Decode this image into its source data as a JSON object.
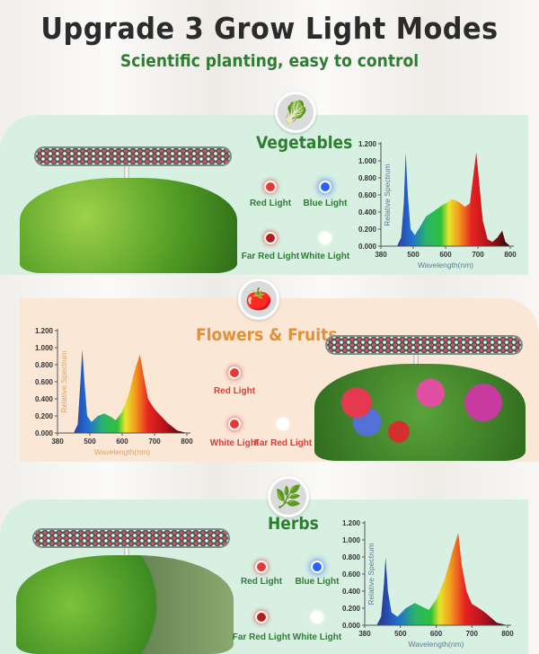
{
  "header": {
    "title": "Upgrade 3 Grow Light Modes",
    "subtitle": "Scientific planting, easy to control"
  },
  "sections": [
    {
      "title": "Vegetables",
      "icon": "lettuce-icon",
      "lights": [
        "Red Light",
        "Blue Light",
        "Far Red Light",
        "White Light"
      ]
    },
    {
      "title": "Flowers & Fruits",
      "icon": "tomato-flower-icon",
      "lights": [
        "Red Light",
        "White Light",
        "Far Red Light"
      ]
    },
    {
      "title": "Herbs",
      "icon": "basil-leaf-icon",
      "lights": [
        "Red Light",
        "Blue Light",
        "Far Red Light",
        "White Light"
      ]
    }
  ],
  "colors": {
    "green_text": "#2e7d32",
    "orange_text": "#e0913a",
    "red_light": "#e53935",
    "blue_light": "#2962ff",
    "mint": "#d7f0e2",
    "peach": "#fbe7d6"
  },
  "chart_data": [
    {
      "type": "area",
      "ylabel": "Relative Spectrum",
      "xlabel": "Wavelength(nm)",
      "xticks": [
        "380",
        "500",
        "600",
        "700",
        "800"
      ],
      "yticks": [
        "0.000",
        "0.200",
        "0.400",
        "0.600",
        "0.800",
        "1.000",
        "1.200"
      ],
      "ylim": [
        0,
        1.2
      ],
      "grid": false,
      "x": [
        380,
        440,
        455,
        465,
        472,
        480,
        490,
        505,
        520,
        540,
        560,
        590,
        620,
        640,
        660,
        675,
        685,
        695,
        705,
        715,
        730,
        745,
        760,
        775,
        785,
        800
      ],
      "y": [
        0,
        0,
        0.1,
        0.5,
        1.1,
        0.6,
        0.2,
        0.13,
        0.22,
        0.35,
        0.4,
        0.48,
        0.55,
        0.52,
        0.46,
        0.5,
        0.8,
        1.1,
        0.7,
        0.3,
        0.08,
        0.05,
        0.1,
        0.18,
        0.05,
        0
      ]
    },
    {
      "type": "area",
      "ylabel": "Relative Spectrum",
      "xlabel": "Wavelength(nm)",
      "xticks": [
        "380",
        "500",
        "600",
        "700",
        "800"
      ],
      "yticks": [
        "0.000",
        "0.200",
        "0.400",
        "0.600",
        "0.800",
        "1.000",
        "1.200"
      ],
      "ylim": [
        0,
        1.2
      ],
      "grid": false,
      "x": [
        380,
        440,
        455,
        465,
        472,
        480,
        490,
        505,
        525,
        545,
        565,
        580,
        600,
        620,
        640,
        655,
        665,
        680,
        700,
        720,
        740,
        770,
        800
      ],
      "y": [
        0,
        0,
        0.1,
        0.6,
        0.98,
        0.6,
        0.2,
        0.13,
        0.2,
        0.23,
        0.19,
        0.15,
        0.25,
        0.45,
        0.75,
        0.92,
        0.7,
        0.4,
        0.28,
        0.2,
        0.12,
        0.03,
        0
      ]
    },
    {
      "type": "area",
      "ylabel": "Relative Spectrum",
      "xlabel": "Wavelength(nm)",
      "xticks": [
        "380",
        "500",
        "600",
        "700",
        "800"
      ],
      "yticks": [
        "0.000",
        "0.200",
        "0.400",
        "0.600",
        "0.800",
        "1.000",
        "1.200"
      ],
      "ylim": [
        0,
        1.2
      ],
      "grid": false,
      "x": [
        380,
        420,
        435,
        445,
        450,
        458,
        470,
        490,
        515,
        540,
        560,
        580,
        600,
        625,
        645,
        662,
        672,
        685,
        700,
        720,
        740,
        770,
        800
      ],
      "y": [
        0,
        0,
        0.1,
        0.5,
        0.8,
        0.4,
        0.15,
        0.1,
        0.2,
        0.26,
        0.22,
        0.18,
        0.3,
        0.55,
        0.85,
        1.08,
        0.7,
        0.4,
        0.25,
        0.2,
        0.14,
        0.03,
        0
      ]
    }
  ]
}
